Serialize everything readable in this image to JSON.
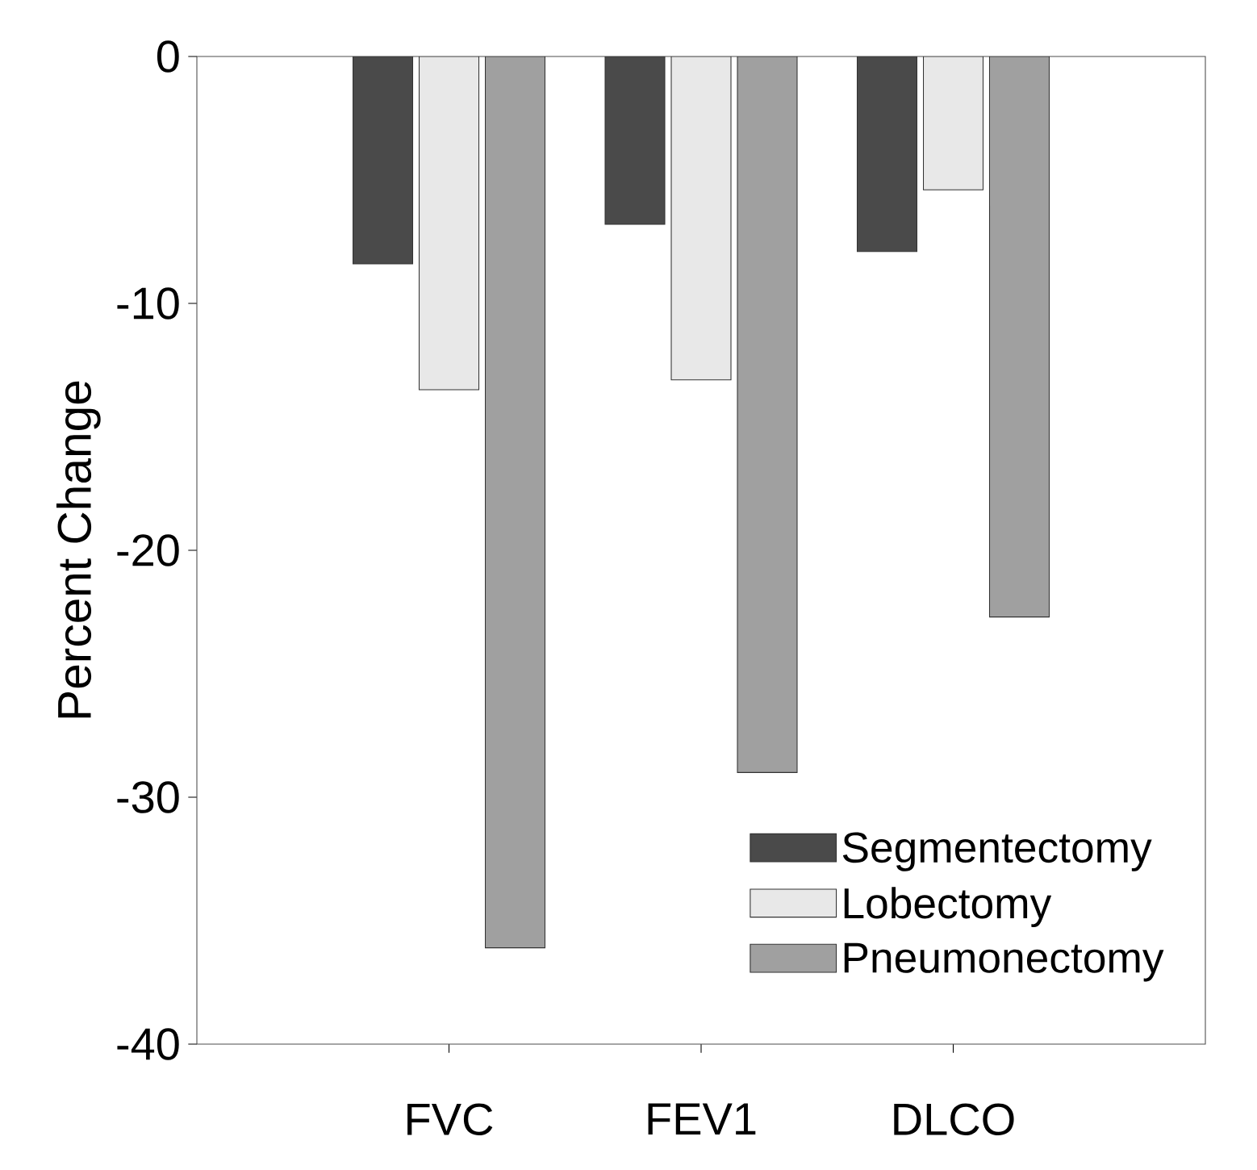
{
  "chart_data": {
    "type": "bar",
    "ylabel": "Percent Change",
    "categories": [
      "FVC",
      "FEV1",
      "DLCO"
    ],
    "series": [
      {
        "name": "Segmentectomy",
        "color": "#4a4a4a",
        "values": [
          -8.4,
          -6.8,
          -7.9
        ]
      },
      {
        "name": "Lobectomy",
        "color": "#e8e8e8",
        "values": [
          -13.5,
          -13.1,
          -5.4
        ]
      },
      {
        "name": "Pneumonectomy",
        "color": "#a0a0a0",
        "values": [
          -36.1,
          -29.0,
          -22.7
        ]
      }
    ],
    "ylim": [
      -40,
      0
    ],
    "yticks": [
      -40,
      -30,
      -20,
      -10,
      0
    ],
    "grid": false,
    "legend": "bottom right"
  }
}
